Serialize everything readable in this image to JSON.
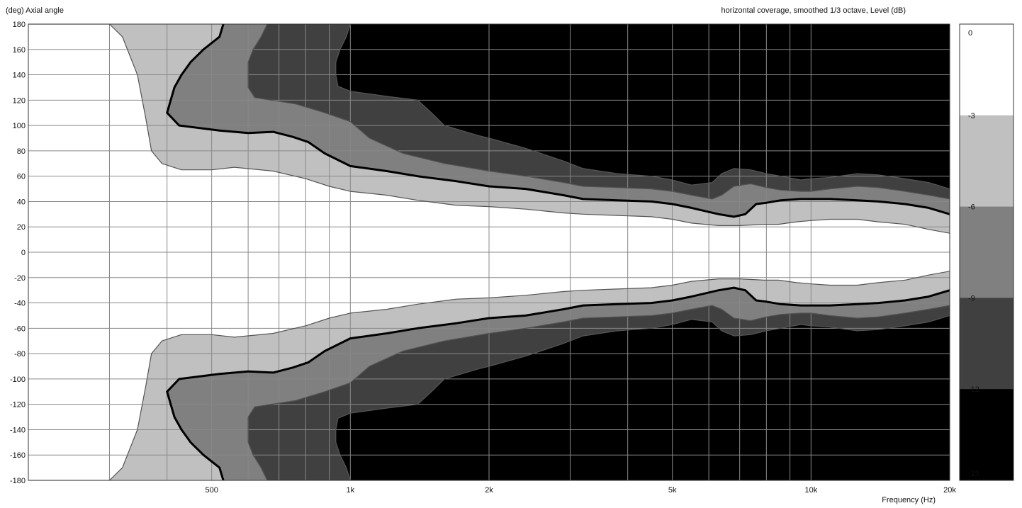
{
  "chart_data": {
    "type": "heatmap",
    "title": "horizontal coverage, smoothed 1/3 octave, Level (dB)",
    "ylabel": "(deg) Axial angle",
    "xlabel": "Frequency (Hz)",
    "x_scale": "log",
    "xlim": [
      200,
      20000
    ],
    "ylim": [
      -180,
      180
    ],
    "y_ticks": [
      180,
      160,
      140,
      120,
      100,
      80,
      60,
      40,
      20,
      0,
      -20,
      -40,
      -60,
      -80,
      -100,
      -120,
      -140,
      -160,
      -180
    ],
    "x_ticks": [
      {
        "value": 500,
        "label": "500"
      },
      {
        "value": 1000,
        "label": "1k"
      },
      {
        "value": 2000,
        "label": "2k"
      },
      {
        "value": 5000,
        "label": "5k"
      },
      {
        "value": 10000,
        "label": "10k"
      },
      {
        "value": 20000,
        "label": "20k"
      }
    ],
    "grid": true,
    "colorbar": {
      "placement": "right",
      "levels": [
        {
          "label": "0",
          "color": "#ffffff"
        },
        {
          "label": "-3",
          "color": "#c0c0c0"
        },
        {
          "label": "-6",
          "color": "#808080"
        },
        {
          "label": "-9",
          "color": "#404040"
        },
        {
          "label": "-12",
          "color": "#000000"
        },
        {
          "label": "-15",
          "color": "#000000"
        }
      ]
    },
    "contour_colors": {
      "band_3_6": "#c0c0c0",
      "band_6_9": "#808080",
      "band_9_12": "#404040",
      "below_12": "#000000",
      "above_3": "#ffffff"
    },
    "contours": [
      {
        "level": -3,
        "points": [
          [
            200,
            180
          ],
          [
            300,
            180
          ],
          [
            320,
            170
          ],
          [
            345,
            140
          ],
          [
            360,
            105
          ],
          [
            370,
            80
          ],
          [
            390,
            70
          ],
          [
            430,
            65
          ],
          [
            500,
            65
          ],
          [
            560,
            67
          ],
          [
            680,
            64
          ],
          [
            800,
            58
          ],
          [
            900,
            52
          ],
          [
            1000,
            48
          ],
          [
            1200,
            45
          ],
          [
            1400,
            41
          ],
          [
            1700,
            37
          ],
          [
            2000,
            36
          ],
          [
            2400,
            34
          ],
          [
            2900,
            31
          ],
          [
            3200,
            30
          ],
          [
            3800,
            29
          ],
          [
            4500,
            28
          ],
          [
            5000,
            26
          ],
          [
            5500,
            23
          ],
          [
            6300,
            21
          ],
          [
            7000,
            21
          ],
          [
            7900,
            22
          ],
          [
            8500,
            22
          ],
          [
            9300,
            24
          ],
          [
            10000,
            25
          ],
          [
            11000,
            26
          ],
          [
            12600,
            26
          ],
          [
            14000,
            24
          ],
          [
            16000,
            22
          ],
          [
            18000,
            18
          ],
          [
            20000,
            15
          ]
        ]
      },
      {
        "level": -6,
        "points": [
          [
            530,
            180
          ],
          [
            520,
            170
          ],
          [
            480,
            160
          ],
          [
            450,
            150
          ],
          [
            430,
            140
          ],
          [
            415,
            130
          ],
          [
            400,
            110
          ],
          [
            425,
            100
          ],
          [
            520,
            96
          ],
          [
            600,
            94
          ],
          [
            680,
            95
          ],
          [
            750,
            91
          ],
          [
            810,
            87
          ],
          [
            880,
            78
          ],
          [
            1000,
            68
          ],
          [
            1200,
            64
          ],
          [
            1400,
            60
          ],
          [
            1700,
            56
          ],
          [
            2000,
            52
          ],
          [
            2400,
            50
          ],
          [
            2900,
            45
          ],
          [
            3200,
            42
          ],
          [
            3800,
            41
          ],
          [
            4500,
            40
          ],
          [
            5000,
            38
          ],
          [
            5500,
            35
          ],
          [
            6300,
            30
          ],
          [
            6800,
            28
          ],
          [
            7200,
            30
          ],
          [
            7600,
            38
          ],
          [
            8000,
            39
          ],
          [
            8600,
            41
          ],
          [
            9500,
            42
          ],
          [
            10000,
            42
          ],
          [
            11000,
            42
          ],
          [
            12600,
            41
          ],
          [
            14000,
            40
          ],
          [
            16000,
            38
          ],
          [
            18000,
            35
          ],
          [
            20000,
            30
          ]
        ]
      },
      {
        "level": -9,
        "points": [
          [
            660,
            180
          ],
          [
            640,
            170
          ],
          [
            615,
            160
          ],
          [
            600,
            150
          ],
          [
            600,
            130
          ],
          [
            620,
            122
          ],
          [
            760,
            117
          ],
          [
            880,
            110
          ],
          [
            1000,
            103
          ],
          [
            1100,
            90
          ],
          [
            1300,
            78
          ],
          [
            1600,
            70
          ],
          [
            2000,
            64
          ],
          [
            2400,
            60
          ],
          [
            2900,
            55
          ],
          [
            3200,
            52
          ],
          [
            3800,
            51
          ],
          [
            4500,
            50
          ],
          [
            5000,
            48
          ],
          [
            5500,
            45
          ],
          [
            6100,
            42
          ],
          [
            6400,
            45
          ],
          [
            6800,
            52
          ],
          [
            7400,
            54
          ],
          [
            8000,
            51
          ],
          [
            8600,
            49
          ],
          [
            9500,
            48
          ],
          [
            10000,
            48
          ],
          [
            11000,
            50
          ],
          [
            12600,
            52
          ],
          [
            14000,
            51
          ],
          [
            16000,
            48
          ],
          [
            18000,
            45
          ],
          [
            20000,
            42
          ]
        ]
      },
      {
        "level": -12,
        "points": [
          [
            1000,
            180
          ],
          [
            980,
            170
          ],
          [
            950,
            160
          ],
          [
            930,
            150
          ],
          [
            930,
            140
          ],
          [
            940,
            131
          ],
          [
            1000,
            127
          ],
          [
            1200,
            123
          ],
          [
            1400,
            120
          ],
          [
            1500,
            110
          ],
          [
            1600,
            100
          ],
          [
            1900,
            92
          ],
          [
            2000,
            90
          ],
          [
            2400,
            82
          ],
          [
            2900,
            72
          ],
          [
            3200,
            66
          ],
          [
            3800,
            62
          ],
          [
            4500,
            60
          ],
          [
            5000,
            57
          ],
          [
            5500,
            53
          ],
          [
            6100,
            55
          ],
          [
            6400,
            62
          ],
          [
            6800,
            66
          ],
          [
            7400,
            65
          ],
          [
            8000,
            62
          ],
          [
            8600,
            60
          ],
          [
            9500,
            57
          ],
          [
            10000,
            58
          ],
          [
            11000,
            59
          ],
          [
            12600,
            62
          ],
          [
            14000,
            61
          ],
          [
            16000,
            58
          ],
          [
            18000,
            55
          ],
          [
            20000,
            50
          ]
        ]
      }
    ]
  }
}
